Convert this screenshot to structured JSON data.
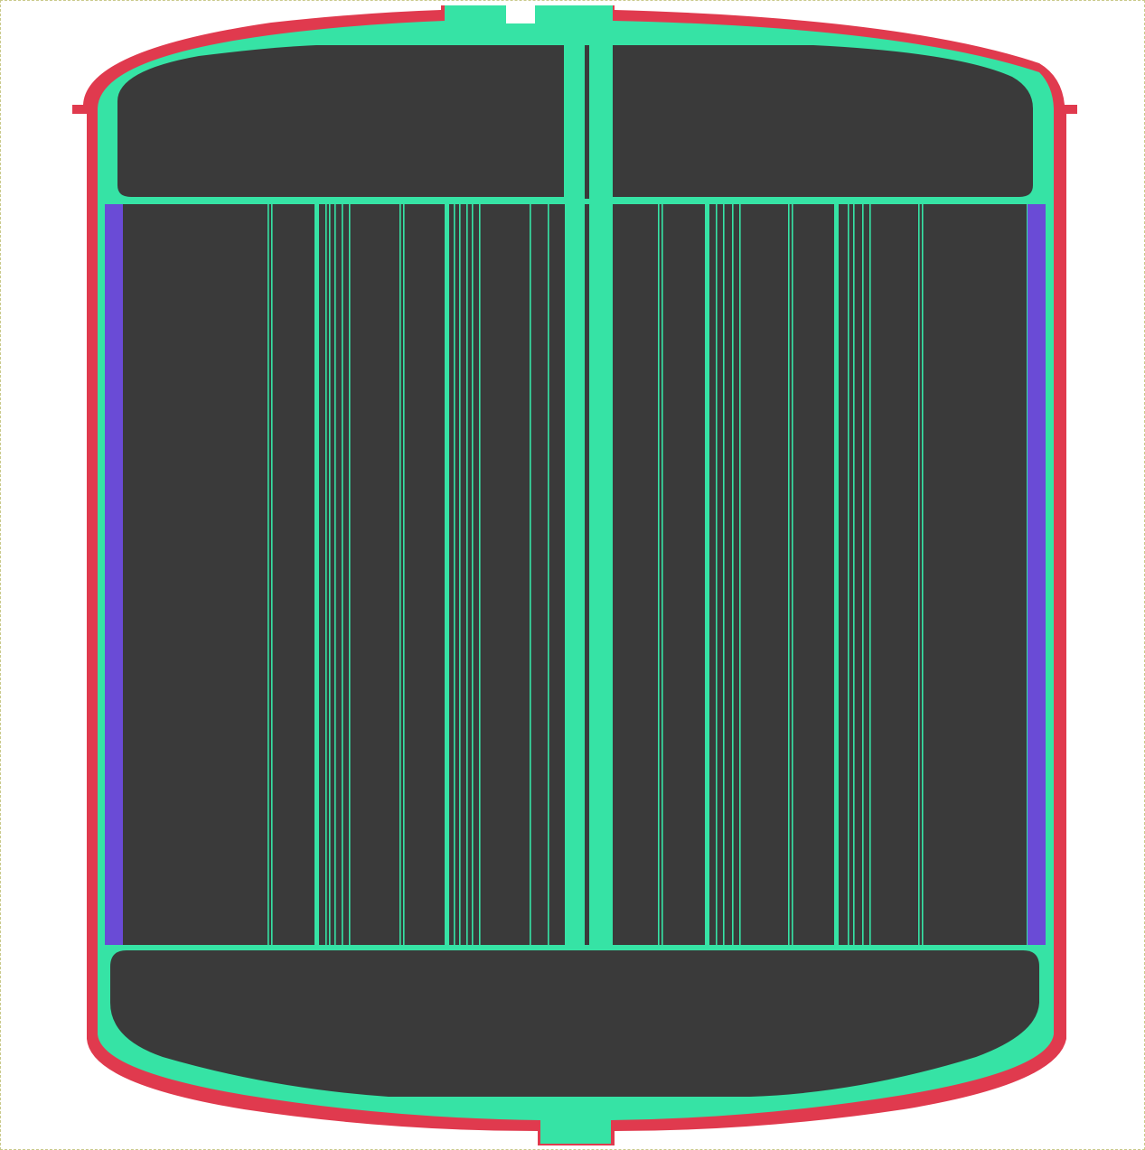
{
  "colors": {
    "background": "#ffffff",
    "canvas_border": "#c9c98a",
    "vessel_shell": "#e03a4e",
    "coolant": "#36e3a5",
    "dark_fill": "#3a3a3a",
    "insulation": "#6a4bd6"
  },
  "components": {
    "shell": "vessel-shell",
    "coolant": "coolant-layer",
    "upper_chamber": "upper-chamber",
    "lower_chamber": "lower-chamber",
    "core_region": "core-region",
    "side_panels": "side-insulation-panels",
    "central_shaft": "central-shaft",
    "top_nozzle": "top-nozzle",
    "bottom_nozzle": "bottom-nozzle"
  }
}
